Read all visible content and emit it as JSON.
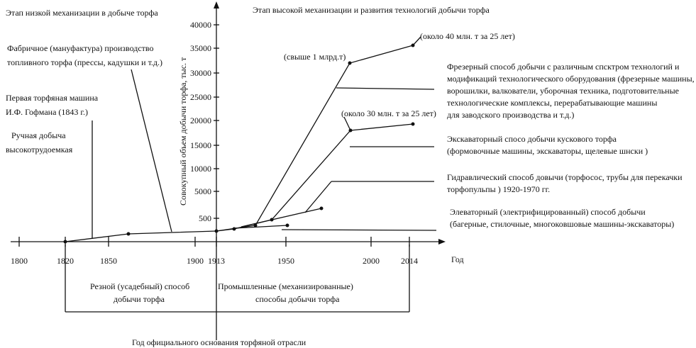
{
  "header": {
    "low_stage": "Этап низкой механизации в добыче торфа",
    "high_stage": "Этап высокой механизации и развития технологий добычи торфа"
  },
  "left_notes": {
    "factory": [
      "Фабричное (мануфактура) производство",
      "топливного торфа (прессы, кадушки и т.д.)"
    ],
    "first_machine": [
      "Первая торфяная машина",
      "И.Ф. Гофмана (1843 г.)"
    ],
    "manual": [
      "Ручная добыча",
      "высокотрудоемкая"
    ]
  },
  "y_axis": {
    "label": "Совокупный объем добычи торфа,  тыс. т",
    "ticks": [
      "40000",
      "35000",
      "30000",
      "25000",
      "20000",
      "15000",
      "10000",
      "5000",
      "500"
    ]
  },
  "x_axis": {
    "label": "Год",
    "ticks": [
      "1800",
      "1820",
      "1850",
      "1900",
      "1913",
      "1950",
      "2000",
      "2014"
    ]
  },
  "annotations": {
    "over_billion": "(свыше 1 млрд.т)",
    "about_40": "(около 40 млн. т за 25 лет)",
    "about_30": "(около 30 млн. т за 25 лет)"
  },
  "methods": {
    "milling": [
      "Фрезерный способ добычи с различным спсктром технологий и",
      "модификаций технологического оборудования (фрезерные машины,",
      "ворошилки, валкователи, уборочная техника, подготовительные",
      "технологические комплексы, перерабатывающие машины",
      "для заводского производства и т.д.)"
    ],
    "excavator": [
      "Экскаваторный спосо добычи кускового торфа",
      "(формовочные машины, экскаваторы, щелевые шнски )"
    ],
    "hydraulic": [
      "Гидравлический способ довычи (торфосос, трубы для перекачки",
      "торфопульпы )  1920-1970 гг."
    ],
    "elevator": [
      "Элеваторный (электрифицированный) способ добычи",
      "(багерные, стилочные, многоковшовые машины-экскаваторы)"
    ]
  },
  "periods": {
    "manual": [
      "Резной (усадебный) способ",
      "добычи торфа"
    ],
    "industrial": [
      "Промышленные (механизированные)",
      "способы добычи торфа"
    ]
  },
  "founding": "Год официального основания торфяной отрасли"
}
